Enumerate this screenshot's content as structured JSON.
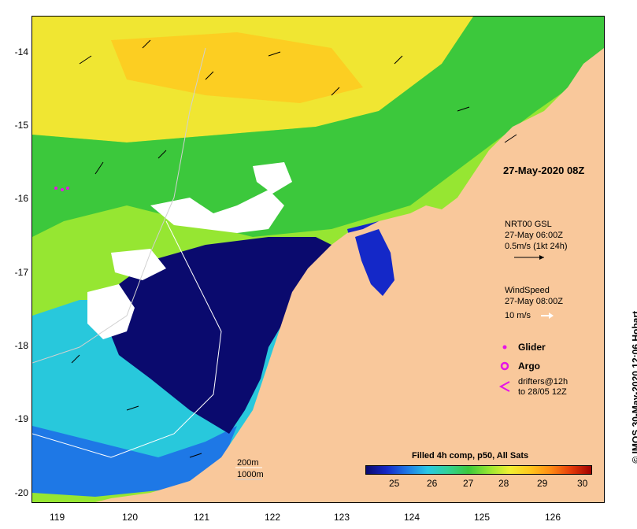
{
  "map": {
    "x_ticks": [
      "119",
      "120",
      "121",
      "122",
      "123",
      "124",
      "125",
      "126"
    ],
    "y_ticks": [
      "-14",
      "-15",
      "-16",
      "-17",
      "-18",
      "-19",
      "-20"
    ],
    "date_label": "27-May-2020 08Z",
    "current_legend": {
      "line1": "NRT00 GSL",
      "line2": "27-May 06:00Z",
      "line3": "0.5m/s (1kt 24h)"
    },
    "wind_legend": {
      "line1": "WindSpeed",
      "line2": "27-May 08:00Z",
      "line3": "10 m/s"
    },
    "glider_label": "Glider",
    "argo_label": "Argo",
    "drifters": {
      "line1": "drifters@12h",
      "line2": "to 28/05 12Z"
    },
    "depth_labels": {
      "d200": "200m",
      "d1000": "1000m"
    },
    "colorbar": {
      "title": "Filled 4h comp, p50, All Sats",
      "ticks": [
        "25",
        "26",
        "27",
        "28",
        "29",
        "30"
      ],
      "colors": [
        "#0a0a6e",
        "#1428c8",
        "#1e78e6",
        "#28c8e6",
        "#32d296",
        "#3cc83c",
        "#96e632",
        "#f0f032",
        "#ffc81e",
        "#ff8c14",
        "#e63c0a",
        "#a00000"
      ]
    },
    "credit": "© IMOS 30-May-2020 12:06 Hobart",
    "land_color": "#f9c89b",
    "colors": {
      "deep_navy": "#0a0a6e",
      "blue": "#1e6ee6",
      "cyan": "#28c8dc",
      "green": "#3cc83c",
      "lightgreen": "#96e632",
      "yellow": "#f0f032",
      "orange": "#ffc81e",
      "magenta": "#e614e6"
    }
  }
}
